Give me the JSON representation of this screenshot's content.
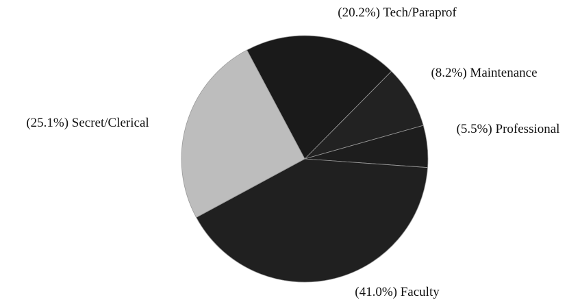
{
  "chart_data": {
    "type": "pie",
    "categories": [
      "Tech/Paraprof",
      "Maintenance",
      "Professional",
      "Faculty",
      "Secret/Clerical"
    ],
    "values": [
      20.2,
      8.2,
      5.5,
      41.0,
      25.1
    ],
    "value_labels": [
      "(20.2%)",
      "(8.2%)",
      "(5.5%)",
      "(41.0%)",
      "(25.1%)"
    ],
    "colors": [
      "#1a1a1a",
      "#222222",
      "#1d1d1d",
      "#202020",
      "#bdbdbd"
    ]
  }
}
